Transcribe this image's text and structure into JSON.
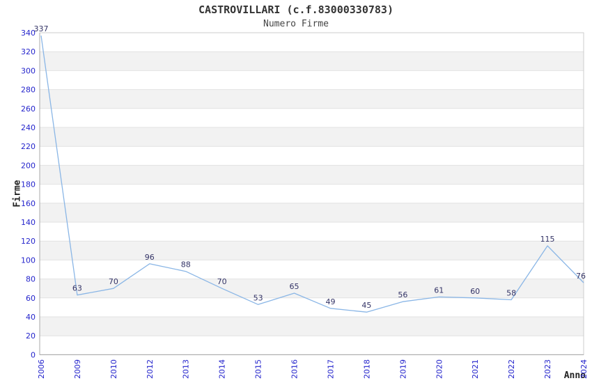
{
  "chart_data": {
    "type": "line",
    "title": "CASTROVILLARI (c.f.83000330783)",
    "subtitle": "Numero Firme",
    "xlabel": "Anno",
    "ylabel": "Firme",
    "categories": [
      "2006",
      "2009",
      "2010",
      "2012",
      "2013",
      "2014",
      "2015",
      "2016",
      "2017",
      "2018",
      "2019",
      "2020",
      "2021",
      "2022",
      "2023",
      "2024"
    ],
    "values": [
      337,
      63,
      70,
      96,
      88,
      70,
      53,
      65,
      49,
      45,
      56,
      61,
      60,
      58,
      115,
      76
    ],
    "ylim": [
      0,
      340
    ],
    "ytick_step": 20,
    "grid": "horizontal-bands",
    "legend": "none",
    "show_point_labels": true,
    "colors": {
      "line": "#8ab6e6",
      "tick_label": "#2424cc",
      "data_label": "#333366",
      "band": "#f2f2f2",
      "gridline": "#e2e2e2",
      "border": "#cccccc",
      "axis": "#a8a8a8",
      "title": "#333333"
    }
  }
}
